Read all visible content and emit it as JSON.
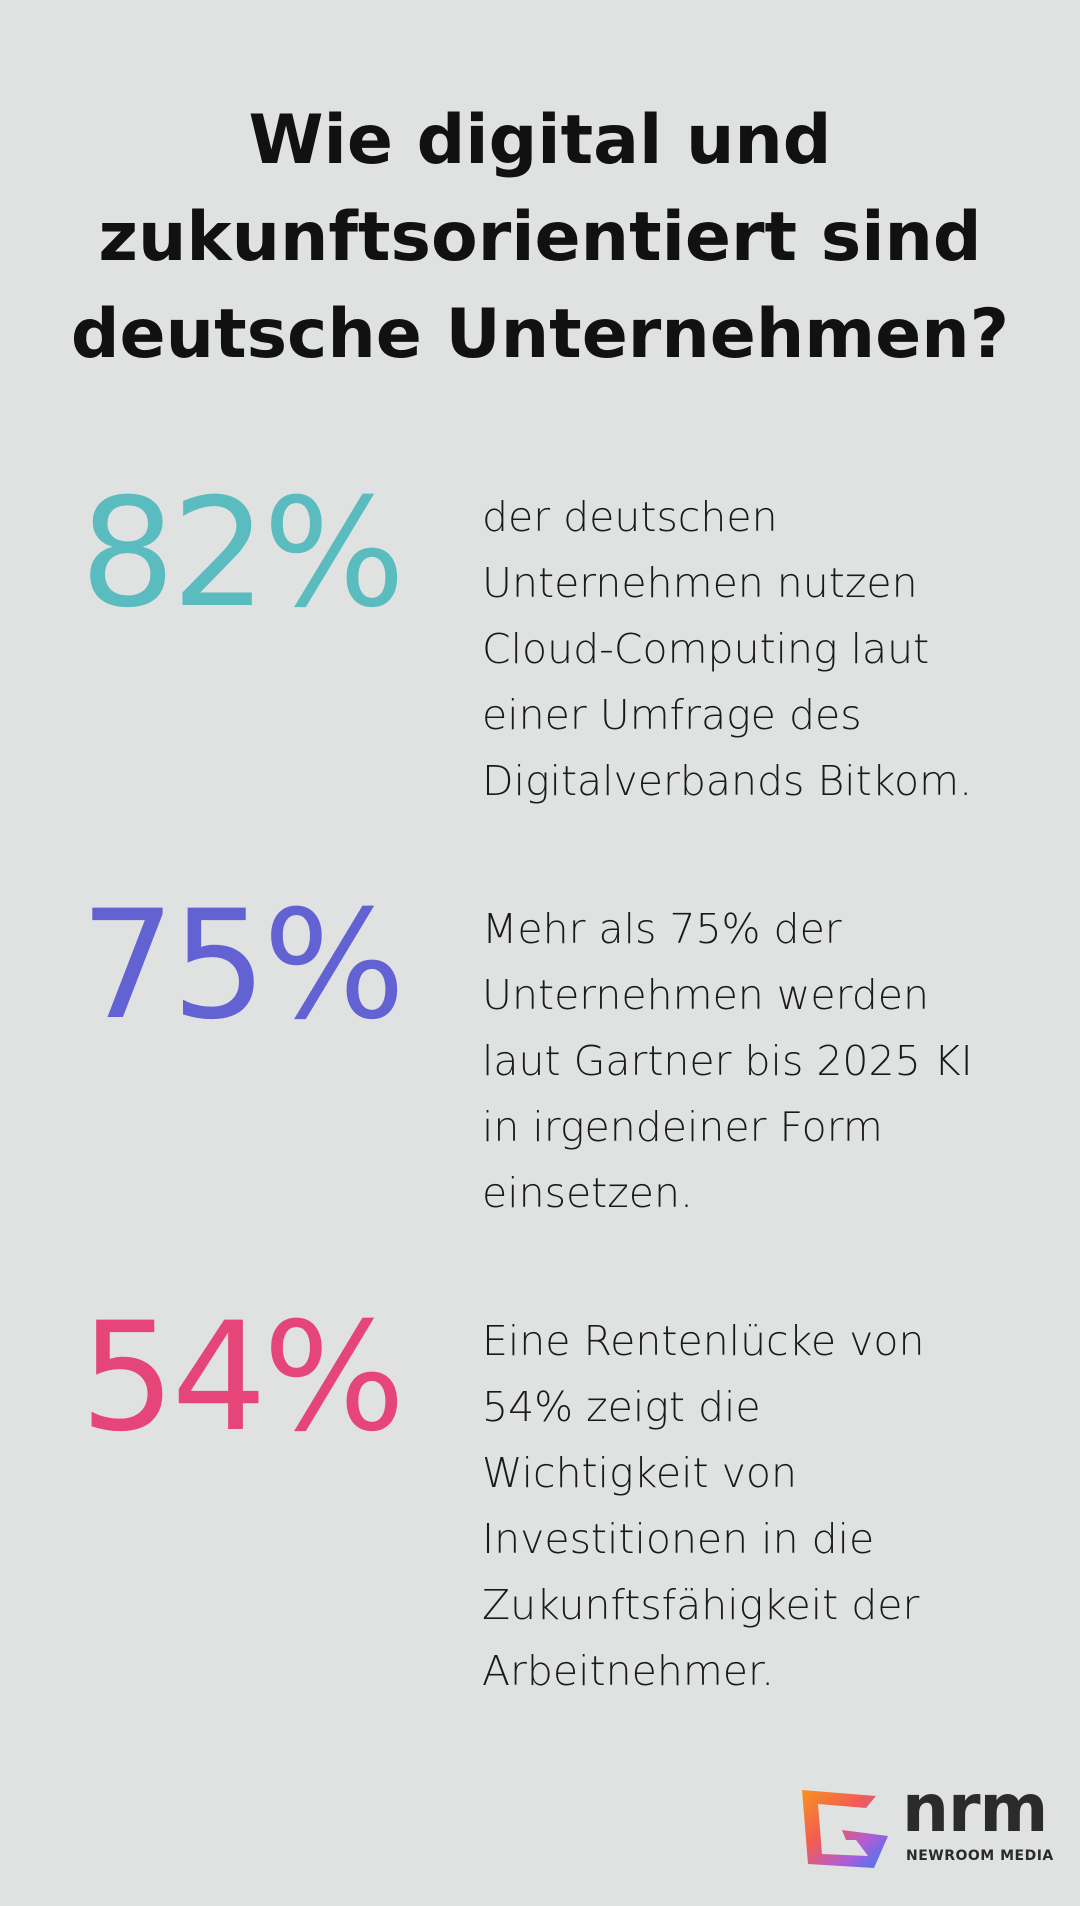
{
  "title": "Wie digital und zukunftsorientiert sind deutsche Unternehmen?",
  "stats": [
    {
      "value": "82%",
      "color": "#5bbcbf",
      "lines": [
        "der deutschen",
        "Unternehmen nutzen",
        "Cloud-Computing laut",
        "einer Umfrage des",
        "Digitalverbands Bitkom."
      ]
    },
    {
      "value": "75%",
      "color": "#6262d2",
      "lines": [
        "Mehr als 75% der",
        "Unternehmen werden",
        "laut Gartner bis 2025 KI",
        "in irgendeiner Form",
        "einsetzen."
      ]
    },
    {
      "value": "54%",
      "color": "#e6457a",
      "lines": [
        "Eine Rentenlücke von",
        "54% zeigt die",
        "Wichtigkeit von",
        "Investitionen in die",
        "Zukunftsfähigkeit der",
        "Arbeitnehmer."
      ]
    }
  ],
  "logo": {
    "name": "nrm",
    "tagline": "NEWROOM MEDIA"
  }
}
